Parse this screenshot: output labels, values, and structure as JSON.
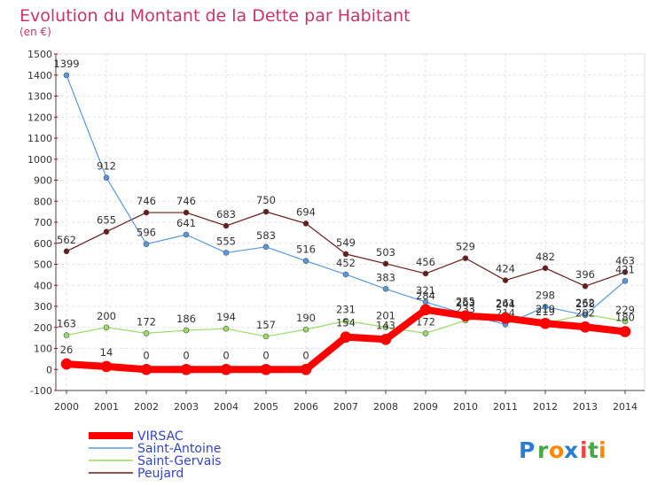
{
  "chart_data": {
    "type": "line",
    "title": "Evolution du Montant de la Dette par Habitant",
    "subtitle": "(en €)",
    "categories": [
      "2000",
      "2001",
      "2002",
      "2003",
      "2004",
      "2005",
      "2006",
      "2007",
      "2008",
      "2009",
      "2010",
      "2011",
      "2012",
      "2013",
      "2014"
    ],
    "ylim": [
      -100,
      1500
    ],
    "yticks": [
      -100,
      0,
      100,
      200,
      300,
      400,
      500,
      600,
      700,
      800,
      900,
      1000,
      1100,
      1200,
      1300,
      1400,
      1500
    ],
    "grid": true,
    "legend_position": "bottom-left",
    "series": [
      {
        "name": "Saint-Gervais",
        "color": "#99dd66",
        "values": [
          163,
          200,
          172,
          186,
          194,
          157,
          190,
          231,
          201,
          172,
          233,
          261,
          219,
          262,
          229
        ]
      },
      {
        "name": "Peujard",
        "color": "#6b1a1a",
        "values": [
          562,
          655,
          746,
          746,
          683,
          750,
          694,
          549,
          503,
          456,
          529,
          424,
          482,
          396,
          463
        ]
      },
      {
        "name": "Saint-Antoine",
        "color": "#5599dd",
        "values": [
          1399,
          912,
          596,
          641,
          555,
          583,
          516,
          452,
          383,
          321,
          263,
          214,
          298,
          258,
          421
        ]
      },
      {
        "name": "VIRSAC",
        "color": "#ff0000",
        "values": [
          26,
          14,
          0,
          0,
          0,
          0,
          0,
          154,
          143,
          284,
          255,
          244,
          219,
          202,
          180
        ]
      }
    ],
    "legend": [
      "VIRSAC",
      "Saint-Antoine",
      "Saint-Gervais",
      "Peujard"
    ]
  },
  "brand": {
    "letters": [
      "P",
      "r",
      "o",
      "x",
      "i",
      "t",
      "i"
    ],
    "colors": [
      "#2a7fd4",
      "#44aa44",
      "#ff8800",
      "#2a7fd4",
      "#ee4444",
      "#44aa44",
      "#ff8800"
    ]
  },
  "theme": {
    "title_color": "#cc3366",
    "legend_text_color": "#3344cc"
  }
}
